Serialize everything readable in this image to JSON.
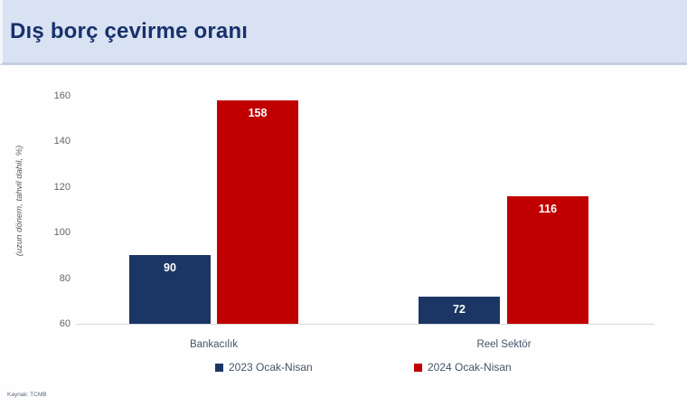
{
  "header": {
    "title": "Dış borç çevirme oranı"
  },
  "chart_data": {
    "type": "bar",
    "title": "Dış borç çevirme oranı",
    "categories": [
      "Bankacılık",
      "Reel Sektör"
    ],
    "series": [
      {
        "name": "2023 Ocak-Nisan",
        "color": "#1b3665",
        "values": [
          90,
          72
        ]
      },
      {
        "name": "2024 Ocak-Nisan",
        "color": "#c00000",
        "values": [
          158,
          116
        ]
      }
    ],
    "xlabel": "",
    "ylabel": "(uzun dönem, tahvil dahil, %)",
    "yticks": [
      60,
      80,
      100,
      120,
      140,
      160
    ],
    "ylim": [
      60,
      160
    ],
    "grid": false,
    "legend_position": "bottom",
    "value_labels": true
  },
  "footer": {
    "source": "Kaynak: TCMB"
  },
  "colors": {
    "header_background": "#d9e2f3",
    "header_title": "#17316b",
    "series_2023": "#1b3665",
    "series_2024": "#c00000",
    "axis_line": "#d9d9d9",
    "tick_label": "#66665f",
    "category_label": "#44546a",
    "bar_value_label": "#ffffff"
  }
}
